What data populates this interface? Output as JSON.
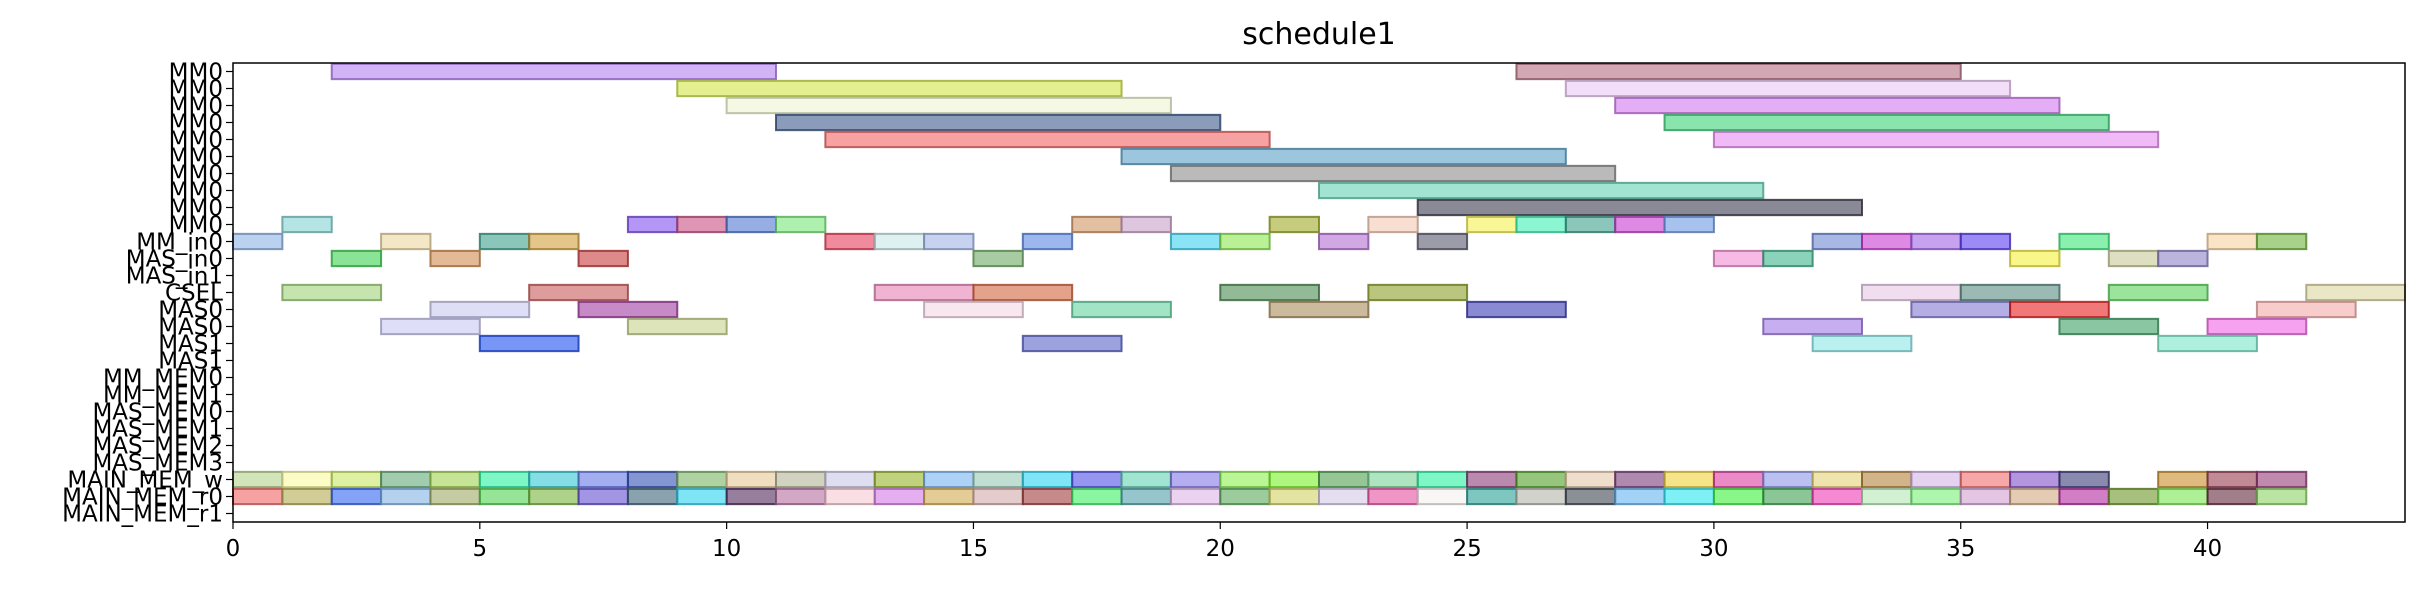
{
  "chart_data": {
    "type": "gantt",
    "title": "schedule1",
    "xlabel": "",
    "ylabel": "",
    "xlim": [
      0,
      44
    ],
    "x_ticks": [
      0,
      5,
      10,
      15,
      20,
      25,
      30,
      35,
      40
    ],
    "grid": false,
    "rows": [
      "MM0",
      "MM0",
      "MM0",
      "MM0",
      "MM0",
      "MM0",
      "MM0",
      "MM0",
      "MM0",
      "MM0",
      "MM_in0",
      "MAS_in0",
      "MAS_in1",
      "CSEL",
      "MAS0",
      "MAS0",
      "MAS1",
      "MAS1",
      "MM_MEM0",
      "MM_MEM1",
      "MAS_MEM0",
      "MAS_MEM1",
      "MAS_MEM2",
      "MAS_MEM3",
      "MAIN_MEM_w",
      "MAIN_MEM_r0",
      "MAIN_MEM_r1"
    ],
    "tasks": [
      {
        "row": 0,
        "start": 2,
        "end": 11,
        "color": "#b482f0"
      },
      {
        "row": 0,
        "start": 26,
        "end": 35,
        "color": "#b46e82"
      },
      {
        "row": 1,
        "start": 9,
        "end": 18,
        "color": "#d2e646"
      },
      {
        "row": 1,
        "start": 27,
        "end": 36,
        "color": "#ebc8f5"
      },
      {
        "row": 2,
        "start": 10,
        "end": 19,
        "color": "#eef5d2"
      },
      {
        "row": 2,
        "start": 28,
        "end": 37,
        "color": "#d278f0"
      },
      {
        "row": 3,
        "start": 11,
        "end": 20,
        "color": "#3c5a8c"
      },
      {
        "row": 3,
        "start": 29,
        "end": 38,
        "color": "#3cd278"
      },
      {
        "row": 4,
        "start": 12,
        "end": 21,
        "color": "#f06464"
      },
      {
        "row": 4,
        "start": 30,
        "end": 39,
        "color": "#e68cf0"
      },
      {
        "row": 5,
        "start": 18,
        "end": 27,
        "color": "#5aa0c8"
      },
      {
        "row": 6,
        "start": 19,
        "end": 28,
        "color": "#8c8c8c"
      },
      {
        "row": 7,
        "start": 22,
        "end": 31,
        "color": "#64d2b4"
      },
      {
        "row": 8,
        "start": 24,
        "end": 33,
        "color": "#3c3c50"
      },
      {
        "row": 9,
        "start": 1,
        "end": 2,
        "color": "#82d2d2"
      },
      {
        "row": 9,
        "start": 8,
        "end": 9,
        "color": "#8250f0"
      },
      {
        "row": 9,
        "start": 9,
        "end": 10,
        "color": "#c85082"
      },
      {
        "row": 9,
        "start": 10,
        "end": 11,
        "color": "#5078d2"
      },
      {
        "row": 9,
        "start": 11,
        "end": 12,
        "color": "#78e678"
      },
      {
        "row": 9,
        "start": 17,
        "end": 18,
        "color": "#d29664"
      },
      {
        "row": 9,
        "start": 18,
        "end": 19,
        "color": "#c8a0c8"
      },
      {
        "row": 9,
        "start": 21,
        "end": 22,
        "color": "#a0aa28"
      },
      {
        "row": 9,
        "start": 23,
        "end": 24,
        "color": "#f5c8b4"
      },
      {
        "row": 9,
        "start": 25,
        "end": 26,
        "color": "#f5f050"
      },
      {
        "row": 9,
        "start": 26,
        "end": 27,
        "color": "#3cf0b4"
      },
      {
        "row": 9,
        "start": 27,
        "end": 28,
        "color": "#3ca08c"
      },
      {
        "row": 9,
        "start": 28,
        "end": 29,
        "color": "#c83cd2"
      },
      {
        "row": 9,
        "start": 29,
        "end": 30,
        "color": "#6e9ae6"
      },
      {
        "row": 10,
        "start": 0,
        "end": 1,
        "color": "#8cb4e6"
      },
      {
        "row": 10,
        "start": 3,
        "end": 4,
        "color": "#ebd7a0"
      },
      {
        "row": 10,
        "start": 5,
        "end": 6,
        "color": "#3ca08c"
      },
      {
        "row": 10,
        "start": 6,
        "end": 7,
        "color": "#d2a03c"
      },
      {
        "row": 10,
        "start": 12,
        "end": 13,
        "color": "#e63c5a"
      },
      {
        "row": 10,
        "start": 13,
        "end": 14,
        "color": "#c8e6e6"
      },
      {
        "row": 10,
        "start": 14,
        "end": 15,
        "color": "#a0b4e6"
      },
      {
        "row": 10,
        "start": 16,
        "end": 17,
        "color": "#5a87e6"
      },
      {
        "row": 10,
        "start": 19,
        "end": 20,
        "color": "#3cd2f0"
      },
      {
        "row": 10,
        "start": 20,
        "end": 21,
        "color": "#8ce650"
      },
      {
        "row": 10,
        "start": 22,
        "end": 23,
        "color": "#b46ed2"
      },
      {
        "row": 10,
        "start": 24,
        "end": 25,
        "color": "#5a5a6e"
      },
      {
        "row": 10,
        "start": 32,
        "end": 33,
        "color": "#6e87d2"
      },
      {
        "row": 10,
        "start": 33,
        "end": 34,
        "color": "#c83cd2"
      },
      {
        "row": 10,
        "start": 34,
        "end": 35,
        "color": "#a064e6"
      },
      {
        "row": 10,
        "start": 35,
        "end": 36,
        "color": "#5a3cf0"
      },
      {
        "row": 10,
        "start": 37,
        "end": 38,
        "color": "#3ce678"
      },
      {
        "row": 10,
        "start": 40,
        "end": 41,
        "color": "#f5d2a0"
      },
      {
        "row": 10,
        "start": 41,
        "end": 42,
        "color": "#6eb43c"
      },
      {
        "row": 11,
        "start": 2,
        "end": 3,
        "color": "#3cd250"
      },
      {
        "row": 11,
        "start": 4,
        "end": 5,
        "color": "#d28c50"
      },
      {
        "row": 11,
        "start": 7,
        "end": 8,
        "color": "#c83c3c"
      },
      {
        "row": 11,
        "start": 15,
        "end": 16,
        "color": "#6eaa64"
      },
      {
        "row": 11,
        "start": 30,
        "end": 31,
        "color": "#f08cd2"
      },
      {
        "row": 11,
        "start": 31,
        "end": 32,
        "color": "#3cb48c"
      },
      {
        "row": 11,
        "start": 36,
        "end": 37,
        "color": "#f5f03c"
      },
      {
        "row": 11,
        "start": 38,
        "end": 39,
        "color": "#c8c896"
      },
      {
        "row": 11,
        "start": 39,
        "end": 40,
        "color": "#8c82c8"
      },
      {
        "row": 13,
        "start": 1,
        "end": 3,
        "color": "#a0d278"
      },
      {
        "row": 13,
        "start": 6,
        "end": 8,
        "color": "#c85a5a"
      },
      {
        "row": 13,
        "start": 13,
        "end": 15,
        "color": "#e682b4"
      },
      {
        "row": 13,
        "start": 15,
        "end": 17,
        "color": "#d2643c"
      },
      {
        "row": 13,
        "start": 20,
        "end": 22,
        "color": "#4b8c50"
      },
      {
        "row": 13,
        "start": 23,
        "end": 25,
        "color": "#8ca028"
      },
      {
        "row": 13,
        "start": 33,
        "end": 35,
        "color": "#e6c8e6"
      },
      {
        "row": 13,
        "start": 35,
        "end": 37,
        "color": "#5a8c82"
      },
      {
        "row": 13,
        "start": 38,
        "end": 40,
        "color": "#5ad25a"
      },
      {
        "row": 13,
        "start": 42,
        "end": 44,
        "color": "#dcd7a0"
      },
      {
        "row": 14,
        "start": 4,
        "end": 6,
        "color": "#c8c8f0"
      },
      {
        "row": 14,
        "start": 7,
        "end": 9,
        "color": "#a03ca0"
      },
      {
        "row": 14,
        "start": 14,
        "end": 16,
        "color": "#f5d7e6"
      },
      {
        "row": 14,
        "start": 17,
        "end": 19,
        "color": "#64d2a0"
      },
      {
        "row": 14,
        "start": 21,
        "end": 23,
        "color": "#aa8c5a"
      },
      {
        "row": 14,
        "start": 25,
        "end": 27,
        "color": "#3c3cb4"
      },
      {
        "row": 14,
        "start": 34,
        "end": 36,
        "color": "#8278d2"
      },
      {
        "row": 14,
        "start": 36,
        "end": 38,
        "color": "#e61e1e"
      },
      {
        "row": 14,
        "start": 41,
        "end": 43,
        "color": "#f5aaaa"
      },
      {
        "row": 15,
        "start": 3,
        "end": 5,
        "color": "#c8c8f5"
      },
      {
        "row": 15,
        "start": 8,
        "end": 10,
        "color": "#c8d28c"
      },
      {
        "row": 15,
        "start": 31,
        "end": 33,
        "color": "#a078e6"
      },
      {
        "row": 15,
        "start": 37,
        "end": 39,
        "color": "#3ca064"
      },
      {
        "row": 15,
        "start": 40,
        "end": 42,
        "color": "#f064e6"
      },
      {
        "row": 16,
        "start": 5,
        "end": 7,
        "color": "#1e50f0"
      },
      {
        "row": 16,
        "start": 16,
        "end": 18,
        "color": "#5a64c8"
      },
      {
        "row": 16,
        "start": 32,
        "end": 34,
        "color": "#8ce6e6"
      },
      {
        "row": 16,
        "start": 39,
        "end": 41,
        "color": "#78e6c8"
      },
      {
        "row": 24,
        "start": 0,
        "end": 1,
        "color": "#b4d28c"
      },
      {
        "row": 24,
        "start": 1,
        "end": 2,
        "color": "#fafaa0"
      },
      {
        "row": 24,
        "start": 2,
        "end": 3,
        "color": "#c8e664"
      },
      {
        "row": 24,
        "start": 3,
        "end": 4,
        "color": "#64aa78"
      },
      {
        "row": 24,
        "start": 4,
        "end": 5,
        "color": "#a0d250"
      },
      {
        "row": 24,
        "start": 5,
        "end": 6,
        "color": "#28f0a0"
      },
      {
        "row": 24,
        "start": 6,
        "end": 7,
        "color": "#32c8d2"
      },
      {
        "row": 24,
        "start": 7,
        "end": 8,
        "color": "#6478e6"
      },
      {
        "row": 24,
        "start": 8,
        "end": 9,
        "color": "#3250b4"
      },
      {
        "row": 24,
        "start": 9,
        "end": 10,
        "color": "#78b464"
      },
      {
        "row": 24,
        "start": 10,
        "end": 11,
        "color": "#e6c896"
      },
      {
        "row": 24,
        "start": 11,
        "end": 12,
        "color": "#b4b496"
      },
      {
        "row": 24,
        "start": 12,
        "end": 13,
        "color": "#c8c8e6"
      },
      {
        "row": 24,
        "start": 13,
        "end": 14,
        "color": "#96b428"
      },
      {
        "row": 24,
        "start": 14,
        "end": 15,
        "color": "#78b4f0"
      },
      {
        "row": 24,
        "start": 15,
        "end": 16,
        "color": "#96c8b4"
      },
      {
        "row": 24,
        "start": 16,
        "end": 17,
        "color": "#28d2f0"
      },
      {
        "row": 24,
        "start": 17,
        "end": 18,
        "color": "#5050e6"
      },
      {
        "row": 24,
        "start": 18,
        "end": 19,
        "color": "#64d2b4"
      },
      {
        "row": 24,
        "start": 19,
        "end": 20,
        "color": "#8278e6"
      },
      {
        "row": 24,
        "start": 20,
        "end": 21,
        "color": "#8cf050"
      },
      {
        "row": 24,
        "start": 21,
        "end": 22,
        "color": "#78f028"
      },
      {
        "row": 24,
        "start": 22,
        "end": 23,
        "color": "#50a050"
      },
      {
        "row": 24,
        "start": 23,
        "end": 24,
        "color": "#78d296"
      },
      {
        "row": 24,
        "start": 24,
        "end": 25,
        "color": "#28f0a0"
      },
      {
        "row": 24,
        "start": 25,
        "end": 26,
        "color": "#8c3c78"
      },
      {
        "row": 24,
        "start": 26,
        "end": 27,
        "color": "#50a028"
      },
      {
        "row": 24,
        "start": 27,
        "end": 28,
        "color": "#e6c8aa"
      },
      {
        "row": 24,
        "start": 28,
        "end": 29,
        "color": "#783c78"
      },
      {
        "row": 24,
        "start": 29,
        "end": 30,
        "color": "#f0d23c"
      },
      {
        "row": 24,
        "start": 30,
        "end": 31,
        "color": "#dc3ca0"
      },
      {
        "row": 24,
        "start": 31,
        "end": 32,
        "color": "#8c96e6"
      },
      {
        "row": 24,
        "start": 32,
        "end": 33,
        "color": "#e6d278"
      },
      {
        "row": 24,
        "start": 33,
        "end": 34,
        "color": "#b4823c"
      },
      {
        "row": 24,
        "start": 34,
        "end": 35,
        "color": "#d2b4e6"
      },
      {
        "row": 24,
        "start": 35,
        "end": 36,
        "color": "#f06e6e"
      },
      {
        "row": 24,
        "start": 36,
        "end": 37,
        "color": "#8250c8"
      },
      {
        "row": 24,
        "start": 37,
        "end": 38,
        "color": "#3c3c78"
      },
      {
        "row": 24,
        "start": 39,
        "end": 40,
        "color": "#c88c28"
      },
      {
        "row": 24,
        "start": 40,
        "end": 41,
        "color": "#963c50"
      },
      {
        "row": 24,
        "start": 41,
        "end": 42,
        "color": "#963c78"
      },
      {
        "row": 25,
        "start": 0,
        "end": 1,
        "color": "#f06464"
      },
      {
        "row": 25,
        "start": 1,
        "end": 2,
        "color": "#b4aa50"
      },
      {
        "row": 25,
        "start": 2,
        "end": 3,
        "color": "#3264f0"
      },
      {
        "row": 25,
        "start": 3,
        "end": 4,
        "color": "#82b4e6"
      },
      {
        "row": 25,
        "start": 4,
        "end": 5,
        "color": "#a0aa64"
      },
      {
        "row": 25,
        "start": 5,
        "end": 6,
        "color": "#50d250"
      },
      {
        "row": 25,
        "start": 6,
        "end": 7,
        "color": "#78b43c"
      },
      {
        "row": 25,
        "start": 7,
        "end": 8,
        "color": "#6450d2"
      },
      {
        "row": 25,
        "start": 8,
        "end": 9,
        "color": "#3c6478"
      },
      {
        "row": 25,
        "start": 9,
        "end": 10,
        "color": "#28d2f0"
      },
      {
        "row": 25,
        "start": 10,
        "end": 11,
        "color": "#50285a"
      },
      {
        "row": 25,
        "start": 11,
        "end": 12,
        "color": "#b46ea0"
      },
      {
        "row": 25,
        "start": 12,
        "end": 13,
        "color": "#f5c8d2"
      },
      {
        "row": 25,
        "start": 13,
        "end": 14,
        "color": "#d278e6"
      },
      {
        "row": 25,
        "start": 14,
        "end": 15,
        "color": "#d2aa50"
      },
      {
        "row": 25,
        "start": 15,
        "end": 16,
        "color": "#d2aaaa"
      },
      {
        "row": 25,
        "start": 16,
        "end": 17,
        "color": "#a03c3c"
      },
      {
        "row": 25,
        "start": 17,
        "end": 18,
        "color": "#3cf064"
      },
      {
        "row": 25,
        "start": 18,
        "end": 19,
        "color": "#50a0aa"
      },
      {
        "row": 25,
        "start": 19,
        "end": 20,
        "color": "#dcb4e6"
      },
      {
        "row": 25,
        "start": 20,
        "end": 21,
        "color": "#5aaa5a"
      },
      {
        "row": 25,
        "start": 21,
        "end": 22,
        "color": "#d2d264"
      },
      {
        "row": 25,
        "start": 22,
        "end": 23,
        "color": "#d2c8e6"
      },
      {
        "row": 25,
        "start": 23,
        "end": 24,
        "color": "#e650a0"
      },
      {
        "row": 25,
        "start": 24,
        "end": 25,
        "color": "#f5f0f0"
      },
      {
        "row": 25,
        "start": 25,
        "end": 26,
        "color": "#28a096"
      },
      {
        "row": 25,
        "start": 26,
        "end": 27,
        "color": "#b4b4aa"
      },
      {
        "row": 25,
        "start": 27,
        "end": 28,
        "color": "#3c4650"
      },
      {
        "row": 25,
        "start": 28,
        "end": 29,
        "color": "#64b4f0"
      },
      {
        "row": 25,
        "start": 29,
        "end": 30,
        "color": "#28e6f0"
      },
      {
        "row": 25,
        "start": 30,
        "end": 31,
        "color": "#3cf03c"
      },
      {
        "row": 25,
        "start": 31,
        "end": 32,
        "color": "#3ca050"
      },
      {
        "row": 25,
        "start": 32,
        "end": 33,
        "color": "#f03cb4"
      },
      {
        "row": 25,
        "start": 33,
        "end": 34,
        "color": "#b4e6b4"
      },
      {
        "row": 25,
        "start": 34,
        "end": 35,
        "color": "#78f078"
      },
      {
        "row": 25,
        "start": 35,
        "end": 36,
        "color": "#d2a0d2"
      },
      {
        "row": 25,
        "start": 36,
        "end": 37,
        "color": "#d2aa82"
      },
      {
        "row": 25,
        "start": 37,
        "end": 38,
        "color": "#b428a0"
      },
      {
        "row": 25,
        "start": 38,
        "end": 39,
        "color": "#6e9628"
      },
      {
        "row": 25,
        "start": 39,
        "end": 40,
        "color": "#78e650"
      },
      {
        "row": 25,
        "start": 40,
        "end": 41,
        "color": "#64283c"
      },
      {
        "row": 25,
        "start": 41,
        "end": 42,
        "color": "#8cd264"
      }
    ]
  }
}
